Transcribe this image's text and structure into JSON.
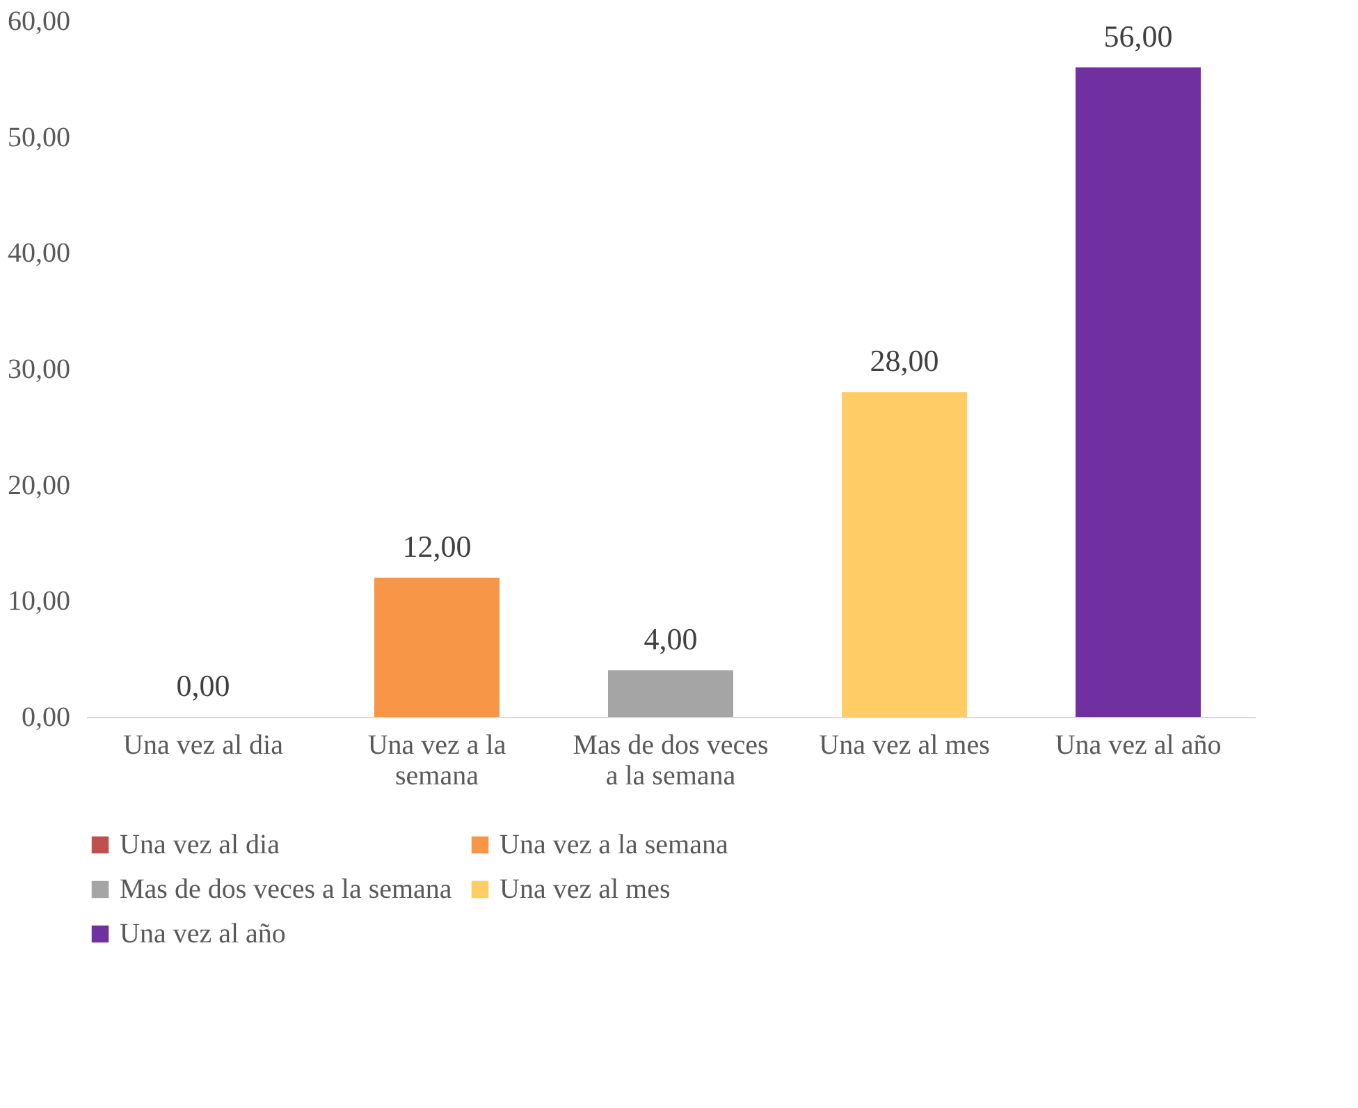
{
  "chart_data": {
    "type": "bar",
    "categories": [
      "Una vez al dia",
      "Una vez a la semana",
      "Mas de dos veces a la semana",
      "Una vez al mes",
      "Una vez al año"
    ],
    "series": [
      {
        "name": "Una vez al dia",
        "color": "#c0504d",
        "values": [
          0,
          null,
          null,
          null,
          null
        ],
        "value_labels": [
          "0,00",
          null,
          null,
          null,
          null
        ]
      },
      {
        "name": "Una vez a la semana",
        "color": "#f79646",
        "values": [
          null,
          12,
          null,
          null,
          null
        ],
        "value_labels": [
          null,
          "12,00",
          null,
          null,
          null
        ]
      },
      {
        "name": "Mas de dos veces a la semana",
        "color": "#a5a5a5",
        "values": [
          null,
          null,
          4,
          null,
          null
        ],
        "value_labels": [
          null,
          null,
          "4,00",
          null,
          null
        ]
      },
      {
        "name": "Una vez al mes",
        "color": "#ffcc66",
        "values": [
          null,
          null,
          null,
          28,
          null
        ],
        "value_labels": [
          null,
          null,
          null,
          "28,00",
          null
        ]
      },
      {
        "name": "Una vez al año",
        "color": "#7030a0",
        "values": [
          null,
          null,
          null,
          null,
          56
        ],
        "value_labels": [
          null,
          null,
          null,
          null,
          "56,00"
        ]
      }
    ],
    "ylim": [
      0,
      60
    ],
    "yticks": [
      {
        "value": 0,
        "label": "0,00"
      },
      {
        "value": 10,
        "label": "10,00"
      },
      {
        "value": 20,
        "label": "20,00"
      },
      {
        "value": 30,
        "label": "30,00"
      },
      {
        "value": 40,
        "label": "40,00"
      },
      {
        "value": 50,
        "label": "50,00"
      },
      {
        "value": 60,
        "label": "60,00"
      }
    ],
    "grid": false,
    "legend": "bottom"
  }
}
